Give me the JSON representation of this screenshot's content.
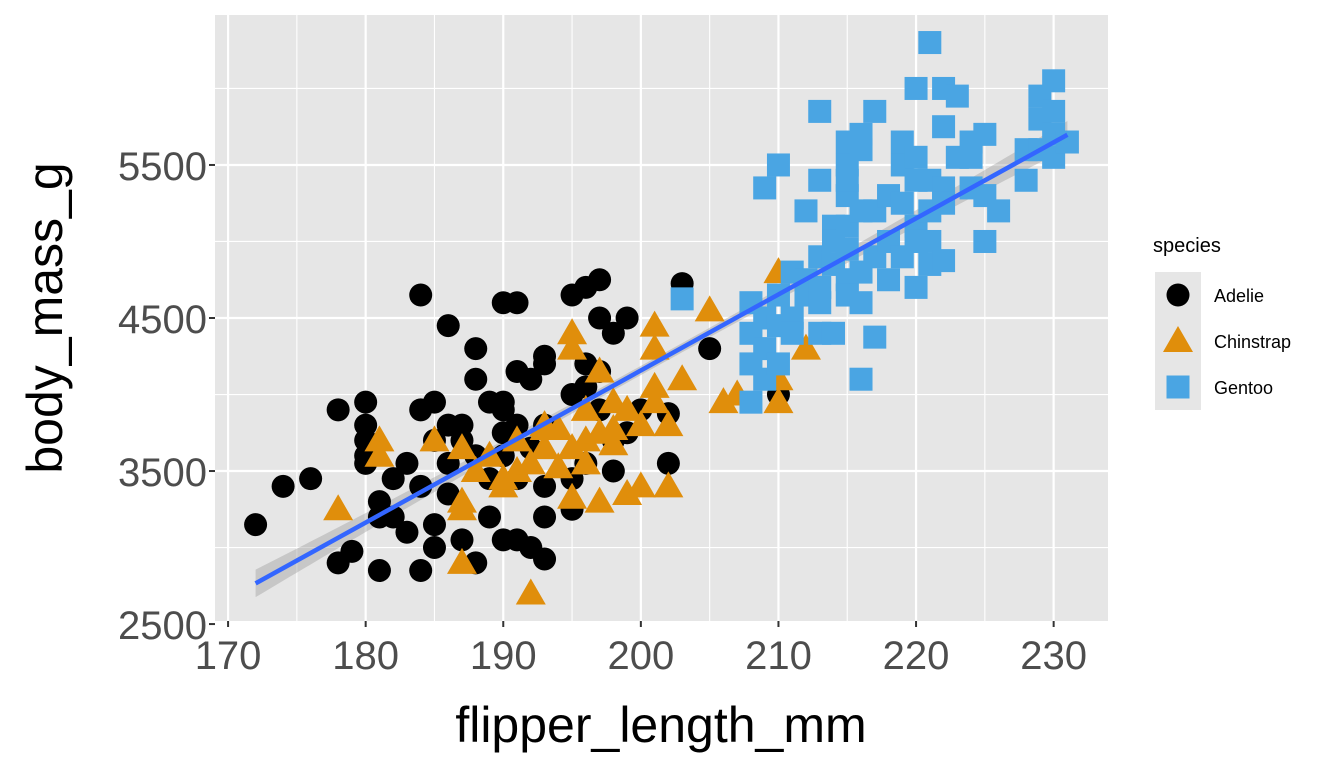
{
  "chart_data": {
    "type": "scatter",
    "xlabel": "flipper_length_mm",
    "ylabel": "body_mass_g",
    "xlim": [
      169.05,
      233.95
    ],
    "ylim": [
      2520,
      6480
    ],
    "x_ticks": [
      170,
      180,
      190,
      200,
      210,
      220,
      230
    ],
    "y_ticks": [
      2500,
      3500,
      4500,
      5500
    ],
    "grid": true,
    "legend": {
      "title": "species",
      "placement": "right"
    },
    "colors": {
      "panel": "#E6E6E6",
      "grid": "#FFFFFF",
      "smooth_line": "#3366FF",
      "smooth_band": "#999999"
    },
    "smooth": {
      "method": "lm",
      "slope": 49.69,
      "intercept": -5781,
      "x_range": [
        172,
        231
      ],
      "se_band": true
    },
    "series": [
      {
        "name": "Adelie",
        "shape": "circle",
        "color": "#000000",
        "points": [
          [
            172,
            3150
          ],
          [
            174,
            3400
          ],
          [
            176,
            3450
          ],
          [
            178,
            3900
          ],
          [
            178,
            2900
          ],
          [
            179,
            2975
          ],
          [
            180,
            3950
          ],
          [
            180,
            3800
          ],
          [
            180,
            3700
          ],
          [
            180,
            3600
          ],
          [
            180,
            3550
          ],
          [
            181,
            3300
          ],
          [
            181,
            3200
          ],
          [
            181,
            2850
          ],
          [
            182,
            3450
          ],
          [
            182,
            3200
          ],
          [
            183,
            3550
          ],
          [
            183,
            3100
          ],
          [
            184,
            4650
          ],
          [
            184,
            3900
          ],
          [
            184,
            3400
          ],
          [
            184,
            2850
          ],
          [
            185,
            3950
          ],
          [
            185,
            3150
          ],
          [
            185,
            3000
          ],
          [
            185,
            3700
          ],
          [
            186,
            4450
          ],
          [
            186,
            3800
          ],
          [
            186,
            3550
          ],
          [
            186,
            3350
          ],
          [
            187,
            3800
          ],
          [
            187,
            3700
          ],
          [
            187,
            3050
          ],
          [
            188,
            4300
          ],
          [
            188,
            4100
          ],
          [
            188,
            3600
          ],
          [
            188,
            2900
          ],
          [
            189,
            3950
          ],
          [
            189,
            3450
          ],
          [
            189,
            3200
          ],
          [
            190,
            4600
          ],
          [
            190,
            3950
          ],
          [
            190,
            3900
          ],
          [
            190,
            3750
          ],
          [
            190,
            3600
          ],
          [
            190,
            3050
          ],
          [
            191,
            4600
          ],
          [
            191,
            4150
          ],
          [
            191,
            3800
          ],
          [
            191,
            3450
          ],
          [
            191,
            3050
          ],
          [
            192,
            4100
          ],
          [
            192,
            3650
          ],
          [
            192,
            3000
          ],
          [
            193,
            4250
          ],
          [
            193,
            4200
          ],
          [
            193,
            3800
          ],
          [
            193,
            3400
          ],
          [
            193,
            3200
          ],
          [
            193,
            2925
          ],
          [
            195,
            4650
          ],
          [
            195,
            4000
          ],
          [
            195,
            3450
          ],
          [
            195,
            3250
          ],
          [
            196,
            4700
          ],
          [
            196,
            4200
          ],
          [
            196,
            4050
          ],
          [
            196,
            3550
          ],
          [
            197,
            4500
          ],
          [
            197,
            4750
          ],
          [
            197,
            4150
          ],
          [
            197,
            3900
          ],
          [
            198,
            4400
          ],
          [
            198,
            3700
          ],
          [
            198,
            3500
          ],
          [
            199,
            4500
          ],
          [
            199,
            3750
          ],
          [
            200,
            3900
          ],
          [
            202,
            3875
          ],
          [
            202,
            3550
          ],
          [
            203,
            4725
          ],
          [
            205,
            4300
          ],
          [
            210,
            4000
          ]
        ]
      },
      {
        "name": "Chinstrap",
        "shape": "triangle",
        "color": "#E08E0B",
        "points": [
          [
            178,
            3250
          ],
          [
            181,
            3700
          ],
          [
            181,
            3600
          ],
          [
            185,
            3700
          ],
          [
            187,
            3650
          ],
          [
            187,
            3300
          ],
          [
            187,
            3250
          ],
          [
            187,
            2900
          ],
          [
            188,
            3500
          ],
          [
            189,
            3600
          ],
          [
            190,
            3400
          ],
          [
            190,
            3450
          ],
          [
            191,
            3700
          ],
          [
            191,
            3500
          ],
          [
            192,
            2700
          ],
          [
            192,
            3550
          ],
          [
            193,
            3800
          ],
          [
            193,
            3650
          ],
          [
            194,
            3525
          ],
          [
            195,
            4400
          ],
          [
            195,
            4300
          ],
          [
            195,
            3650
          ],
          [
            195,
            3325
          ],
          [
            196,
            3550
          ],
          [
            196,
            3700
          ],
          [
            196,
            3900
          ],
          [
            197,
            4150
          ],
          [
            197,
            3750
          ],
          [
            197,
            3300
          ],
          [
            198,
            3950
          ],
          [
            198,
            3675
          ],
          [
            199,
            3900
          ],
          [
            199,
            3350
          ],
          [
            200,
            3400
          ],
          [
            200,
            3800
          ],
          [
            201,
            4450
          ],
          [
            201,
            4300
          ],
          [
            201,
            4050
          ],
          [
            201,
            3950
          ],
          [
            202,
            3800
          ],
          [
            202,
            3400
          ],
          [
            203,
            4100
          ],
          [
            205,
            4550
          ],
          [
            206,
            3950
          ],
          [
            207,
            4000
          ],
          [
            210,
            4800
          ],
          [
            210,
            4100
          ],
          [
            210,
            3950
          ],
          [
            212,
            4300
          ],
          [
            193,
            3775
          ],
          [
            194,
            3775
          ],
          [
            198,
            3775
          ]
        ]
      },
      {
        "name": "Gentoo",
        "shape": "square",
        "color": "#4AA5E3",
        "points": [
          [
            203,
            4625
          ],
          [
            208,
            4600
          ],
          [
            208,
            4400
          ],
          [
            208,
            4200
          ],
          [
            208,
            3950
          ],
          [
            209,
            4500
          ],
          [
            209,
            4300
          ],
          [
            209,
            4100
          ],
          [
            209,
            5350
          ],
          [
            210,
            5500
          ],
          [
            210,
            4650
          ],
          [
            210,
            4450
          ],
          [
            210,
            4200
          ],
          [
            211,
            4800
          ],
          [
            211,
            4500
          ],
          [
            211,
            4400
          ],
          [
            212,
            4750
          ],
          [
            212,
            4650
          ],
          [
            212,
            5200
          ],
          [
            213,
            5400
          ],
          [
            213,
            4900
          ],
          [
            213,
            4700
          ],
          [
            213,
            4600
          ],
          [
            213,
            4400
          ],
          [
            213,
            5850
          ],
          [
            214,
            5100
          ],
          [
            214,
            4850
          ],
          [
            214,
            4400
          ],
          [
            214,
            5000
          ],
          [
            215,
            5650
          ],
          [
            215,
            5500
          ],
          [
            215,
            5300
          ],
          [
            215,
            5100
          ],
          [
            215,
            4950
          ],
          [
            215,
            4750
          ],
          [
            215,
            4650
          ],
          [
            215,
            5400
          ],
          [
            216,
            5600
          ],
          [
            216,
            5200
          ],
          [
            216,
            4800
          ],
          [
            216,
            4600
          ],
          [
            216,
            4100
          ],
          [
            216,
            5700
          ],
          [
            217,
            5850
          ],
          [
            217,
            5200
          ],
          [
            217,
            4900
          ],
          [
            217,
            4375
          ],
          [
            218,
            5300
          ],
          [
            218,
            5000
          ],
          [
            218,
            4750
          ],
          [
            219,
            5500
          ],
          [
            219,
            5250
          ],
          [
            219,
            4900
          ],
          [
            219,
            5650
          ],
          [
            220,
            6000
          ],
          [
            220,
            5550
          ],
          [
            220,
            5400
          ],
          [
            220,
            5100
          ],
          [
            220,
            5000
          ],
          [
            220,
            4700
          ],
          [
            221,
            6300
          ],
          [
            221,
            5400
          ],
          [
            221,
            5200
          ],
          [
            221,
            5000
          ],
          [
            221,
            4850
          ],
          [
            222,
            6000
          ],
          [
            222,
            5750
          ],
          [
            222,
            5350
          ],
          [
            222,
            5250
          ],
          [
            222,
            4875
          ],
          [
            223,
            5950
          ],
          [
            223,
            5550
          ],
          [
            224,
            5650
          ],
          [
            224,
            5350
          ],
          [
            224,
            5550
          ],
          [
            225,
            5700
          ],
          [
            225,
            5300
          ],
          [
            225,
            5000
          ],
          [
            226,
            5200
          ],
          [
            228,
            5600
          ],
          [
            228,
            5400
          ],
          [
            229,
            5950
          ],
          [
            229,
            5800
          ],
          [
            229,
            5600
          ],
          [
            230,
            6050
          ],
          [
            230,
            5850
          ],
          [
            230,
            5700
          ],
          [
            230,
            5550
          ],
          [
            231,
            5650
          ]
        ]
      }
    ]
  }
}
